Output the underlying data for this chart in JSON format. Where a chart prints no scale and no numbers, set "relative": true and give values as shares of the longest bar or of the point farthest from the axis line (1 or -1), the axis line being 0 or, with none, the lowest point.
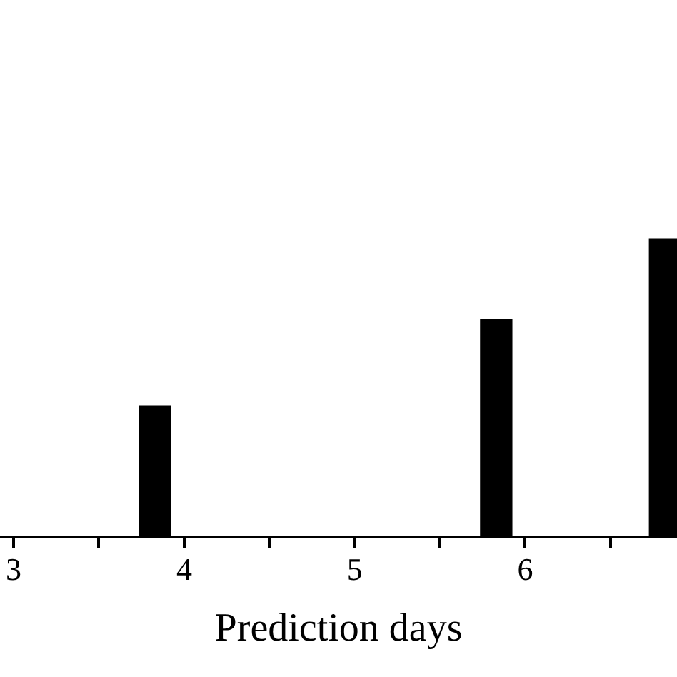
{
  "chart_data": {
    "type": "bar",
    "xlabel": "Prediction days",
    "x": [
      3.83,
      5.83,
      6.82
    ],
    "values": [
      0.44,
      0.73,
      1
    ],
    "color": "#000000",
    "relative": true,
    "xlim": [
      2.92,
      6.89
    ],
    "xticks": [
      3,
      {
        "value": 3.5,
        "label": null
      },
      4,
      {
        "value": 4.5,
        "label": null
      },
      5,
      {
        "value": 5.5,
        "label": null
      },
      6,
      {
        "value": 6.5,
        "label": null
      }
    ]
  }
}
